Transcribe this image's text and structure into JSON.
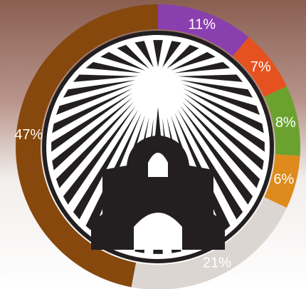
{
  "chart_data": {
    "type": "donut",
    "categories": [
      null,
      null,
      null,
      null,
      null,
      null
    ],
    "values": [
      11,
      7,
      8,
      6,
      21,
      47
    ],
    "value_labels": [
      "11%",
      "7%",
      "8%",
      "6%",
      "21%",
      "47%"
    ],
    "colors": [
      "#8a3fae",
      "#e6521f",
      "#6ba22f",
      "#de8a1c",
      "#dcd6d2",
      "#86480c"
    ]
  }
}
